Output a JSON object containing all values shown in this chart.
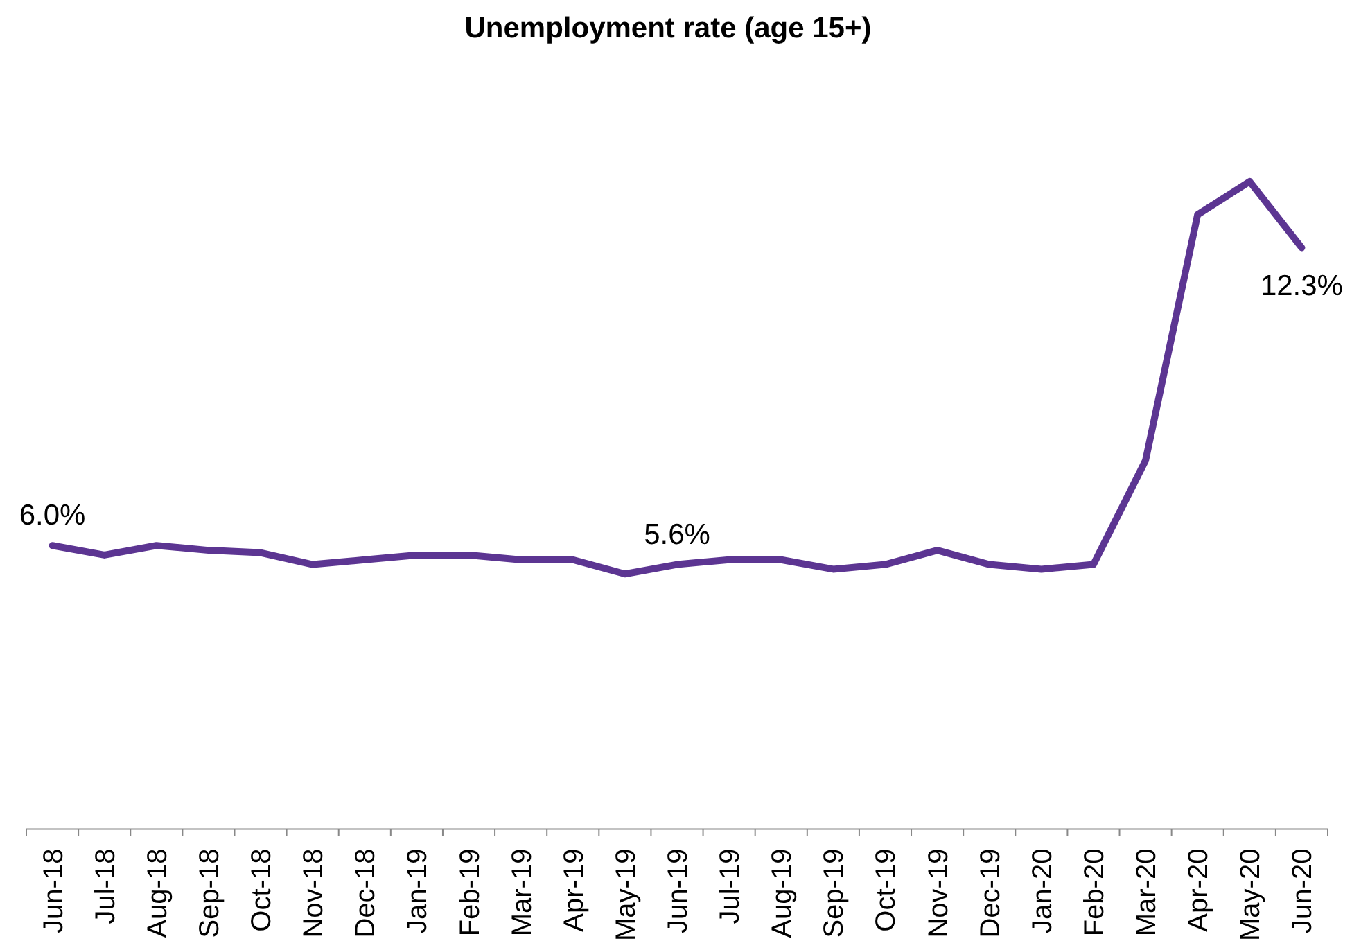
{
  "chart_data": {
    "type": "line",
    "title": "Unemployment rate (age 15+)",
    "categories": [
      "Jun-18",
      "Jul-18",
      "Aug-18",
      "Sep-18",
      "Oct-18",
      "Nov-18",
      "Dec-18",
      "Jan-19",
      "Feb-19",
      "Mar-19",
      "Apr-19",
      "May-19",
      "Jun-19",
      "Jul-19",
      "Aug-19",
      "Sep-19",
      "Oct-19",
      "Nov-19",
      "Dec-19",
      "Jan-20",
      "Feb-20",
      "Mar-20",
      "Apr-20",
      "May-20",
      "Jun-20"
    ],
    "series": [
      {
        "color": "#5c3592",
        "values": [
          6.0,
          5.8,
          6.0,
          5.9,
          5.85,
          5.6,
          5.7,
          5.8,
          5.8,
          5.7,
          5.7,
          5.4,
          5.6,
          5.7,
          5.7,
          5.5,
          5.6,
          5.9,
          5.6,
          5.5,
          5.6,
          7.8,
          13.0,
          13.7,
          12.3
        ],
        "value_labels": [
          "6.0%",
          null,
          null,
          null,
          null,
          null,
          null,
          null,
          null,
          null,
          null,
          null,
          "5.6%",
          null,
          null,
          null,
          null,
          null,
          null,
          null,
          null,
          null,
          null,
          null,
          "12.3%"
        ]
      }
    ],
    "tick_labels": "x"
  }
}
